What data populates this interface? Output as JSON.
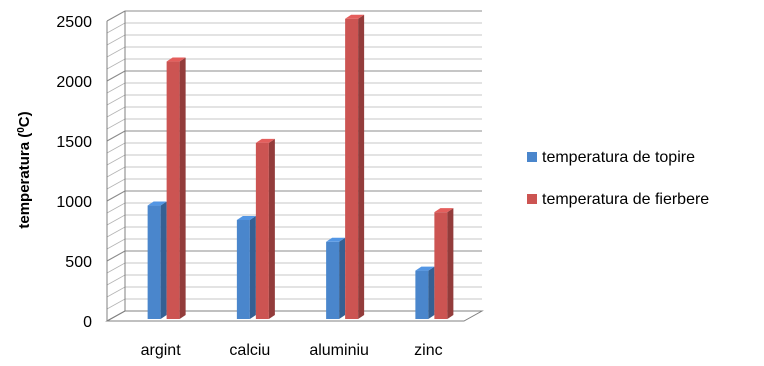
{
  "chart_data": {
    "type": "bar",
    "style": "3d-clustered-column",
    "ylabel": "temperatura (",
    "ylabel_superscript": "0",
    "ylabel_suffix": "C)",
    "xlabel": "",
    "title": "",
    "categories": [
      "argint",
      "calciu",
      "aluminiu",
      "zinc"
    ],
    "ylim": [
      0,
      2500
    ],
    "yticks": [
      "0",
      "500",
      "1000",
      "1500",
      "2000",
      "2500"
    ],
    "grid": true,
    "legend_position": "right",
    "series": [
      {
        "name": "temperatura de topire",
        "color": "#4a86cc",
        "values": [
          962,
          842,
          660,
          420
        ]
      },
      {
        "name": "temperatura de fierbere",
        "color": "#cc5452",
        "values": [
          2162,
          1484,
          2519,
          907
        ]
      }
    ]
  }
}
